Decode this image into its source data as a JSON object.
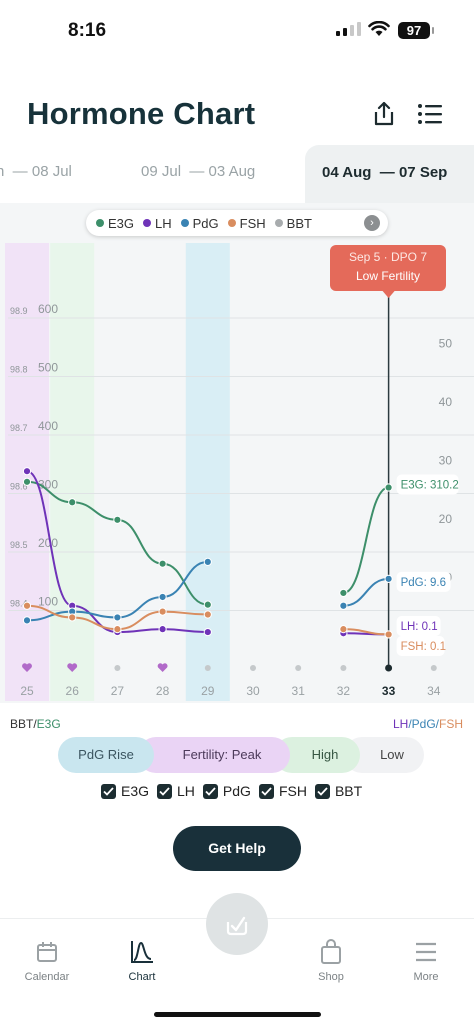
{
  "status_bar": {
    "time": "8:16",
    "battery": "97"
  },
  "header": {
    "title": "Hormone Chart"
  },
  "ranges": [
    {
      "from": "n",
      "to": "08 Jul"
    },
    {
      "from": "09 Jul",
      "to": "03 Aug"
    },
    {
      "from": "04 Aug",
      "to": "07 Sep"
    }
  ],
  "legend": [
    {
      "name": "E3G",
      "color": "#3d8f6a"
    },
    {
      "name": "LH",
      "color": "#6f33b8"
    },
    {
      "name": "PdG",
      "color": "#3a83b3"
    },
    {
      "name": "FSH",
      "color": "#d98d5f"
    },
    {
      "name": "BBT",
      "color": "#a8acae"
    }
  ],
  "tooltip": {
    "line1": "Sep 5 · DPO 7",
    "line2": "Low Fertility"
  },
  "callouts": {
    "e3g": "E3G: 310.2",
    "pdg": "PdG: 9.6",
    "lh": "LH: 0.1",
    "fsh": "FSH: 0.1"
  },
  "axis_tags": {
    "left_a": "BBT/",
    "left_b": "E3G",
    "right_a": "LH",
    "right_b": "/PdG/",
    "right_c": "FSH"
  },
  "chart_data": {
    "type": "line",
    "x": [
      25,
      26,
      27,
      28,
      29,
      30,
      31,
      32,
      33,
      34
    ],
    "left_axis_bbt": {
      "ticks": [
        98.4,
        98.5,
        98.6,
        98.7,
        98.8,
        98.9
      ]
    },
    "left_axis_e3g": {
      "ticks": [
        100,
        200,
        300,
        400,
        500,
        600
      ]
    },
    "right_axis": {
      "ticks": [
        10,
        20,
        30,
        40,
        50
      ]
    },
    "series": [
      {
        "name": "E3G",
        "color": "#3d8f6a",
        "axis": "e3g",
        "points": [
          [
            25,
            320
          ],
          [
            26,
            285
          ],
          [
            27,
            255
          ],
          [
            28,
            180
          ],
          [
            29,
            110
          ],
          [
            32,
            130
          ],
          [
            33,
            310.2
          ]
        ]
      },
      {
        "name": "LH",
        "color": "#6f33b8",
        "axis": "right",
        "points": [
          [
            25,
            28
          ],
          [
            26,
            5
          ],
          [
            27,
            0.5
          ],
          [
            28,
            1
          ],
          [
            29,
            0.5
          ],
          [
            32,
            0.3
          ],
          [
            33,
            0.1
          ]
        ]
      },
      {
        "name": "PdG",
        "color": "#3a83b3",
        "axis": "right",
        "points": [
          [
            25,
            2.5
          ],
          [
            26,
            4
          ],
          [
            27,
            3
          ],
          [
            28,
            6.5
          ],
          [
            29,
            12.5
          ],
          [
            32,
            5
          ],
          [
            33,
            9.6
          ]
        ]
      },
      {
        "name": "FSH",
        "color": "#d98d5f",
        "axis": "right",
        "points": [
          [
            25,
            5
          ],
          [
            26,
            3
          ],
          [
            27,
            1
          ],
          [
            28,
            4
          ],
          [
            29,
            3.5
          ],
          [
            32,
            1
          ],
          [
            33,
            0.1
          ]
        ]
      }
    ],
    "day_markers": [
      {
        "day": 25,
        "mark": "heart"
      },
      {
        "day": 26,
        "mark": "heart"
      },
      {
        "day": 27,
        "mark": "dot"
      },
      {
        "day": 28,
        "mark": "heart"
      },
      {
        "day": 29,
        "mark": "dot"
      },
      {
        "day": 30,
        "mark": "dot"
      },
      {
        "day": 31,
        "mark": "dot"
      },
      {
        "day": 32,
        "mark": "dot"
      },
      {
        "day": 33,
        "mark": "selected"
      },
      {
        "day": 34,
        "mark": "dot"
      }
    ],
    "bands": [
      {
        "day": 25,
        "phase": "Fertility: Peak"
      },
      {
        "day": 26,
        "phase": "High"
      },
      {
        "day": 29,
        "phase": "PdG Rise"
      }
    ],
    "selected_day": 33
  },
  "status_legend": [
    "PdG Rise",
    "Fertility: Peak",
    "High",
    "Low"
  ],
  "checkboxes": [
    "E3G",
    "LH",
    "PdG",
    "FSH",
    "BBT"
  ],
  "help_button": "Get Help",
  "tabs": [
    {
      "label": "Calendar",
      "icon": "calendar-icon"
    },
    {
      "label": "Chart",
      "icon": "chart-icon"
    },
    {
      "label": "Shop",
      "icon": "bag-icon"
    },
    {
      "label": "More",
      "icon": "menu-icon"
    }
  ]
}
